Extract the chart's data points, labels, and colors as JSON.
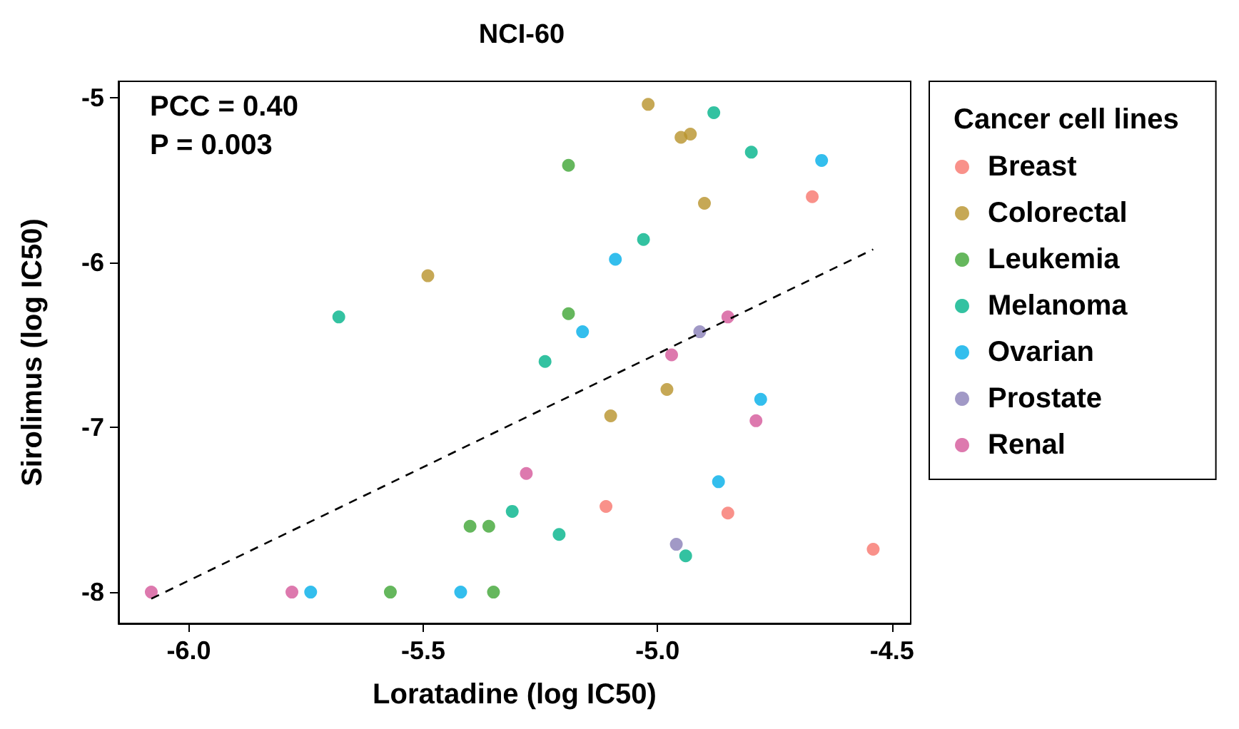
{
  "chart_data": {
    "type": "scatter",
    "title": "NCI-60",
    "xlabel": "Loratadine (log IC50)",
    "ylabel": "Sirolimus (log IC50)",
    "legend_title": "Cancer cell lines",
    "legend": "right",
    "marker": "circle",
    "annotations": [
      "PCC = 0.40",
      "P = 0.003"
    ],
    "xlim": [
      -6.15,
      -4.46
    ],
    "ylim": [
      -8.19,
      -4.9
    ],
    "xticks": [
      {
        "value": -6,
        "label": "-6.0"
      },
      {
        "value": -5.5,
        "label": "-5.5"
      },
      {
        "value": -5,
        "label": "-5.0"
      },
      {
        "value": -4.5,
        "label": "-4.5"
      }
    ],
    "yticks": [
      -8,
      -7,
      -6,
      -5
    ],
    "series": [
      {
        "name": "Breast",
        "color": "#f8766d",
        "x": [
          -4.67,
          -5.11,
          -4.85,
          -4.54
        ],
        "values": [
          -5.6,
          -7.48,
          -7.52,
          -7.74
        ]
      },
      {
        "name": "Colorectal",
        "color": "#b8922a",
        "x": [
          -5.02,
          -4.95,
          -4.93,
          -4.9,
          -5.49,
          -4.98,
          -5.1
        ],
        "values": [
          -5.04,
          -5.24,
          -5.22,
          -5.64,
          -6.08,
          -6.77,
          -6.93
        ]
      },
      {
        "name": "Leukemia",
        "color": "#3fa535",
        "x": [
          -5.19,
          -5.19,
          -5.4,
          -5.36,
          -5.57,
          -5.35
        ],
        "values": [
          -5.41,
          -6.31,
          -7.6,
          -7.6,
          -8.0,
          -8.0
        ]
      },
      {
        "name": "Melanoma",
        "color": "#00b38a",
        "x": [
          -4.88,
          -4.8,
          -5.03,
          -5.68,
          -5.24,
          -5.31,
          -5.21,
          -4.94
        ],
        "values": [
          -5.09,
          -5.33,
          -5.86,
          -6.33,
          -6.6,
          -7.51,
          -7.65,
          -7.78
        ]
      },
      {
        "name": "Ovarian",
        "color": "#00aee8",
        "x": [
          -4.65,
          -5.09,
          -5.16,
          -4.78,
          -4.87,
          -5.74,
          -5.42
        ],
        "values": [
          -5.38,
          -5.98,
          -6.42,
          -6.83,
          -7.33,
          -8.0,
          -8.0
        ]
      },
      {
        "name": "Prostate",
        "color": "#8a7fb8",
        "x": [
          -4.91,
          -4.96
        ],
        "values": [
          -6.42,
          -7.71
        ]
      },
      {
        "name": "Renal",
        "color": "#d4589a",
        "x": [
          -4.85,
          -4.97,
          -4.79,
          -5.28,
          -6.08,
          -5.78
        ],
        "values": [
          -6.33,
          -6.56,
          -6.96,
          -7.28,
          -8.0,
          -8.0
        ]
      },
      {
        "type": "line",
        "color": "#000000",
        "line_style": "dashed",
        "marker": "none",
        "x": [
          -6.08,
          -4.54
        ],
        "values": [
          -8.04,
          -5.92
        ]
      }
    ]
  }
}
